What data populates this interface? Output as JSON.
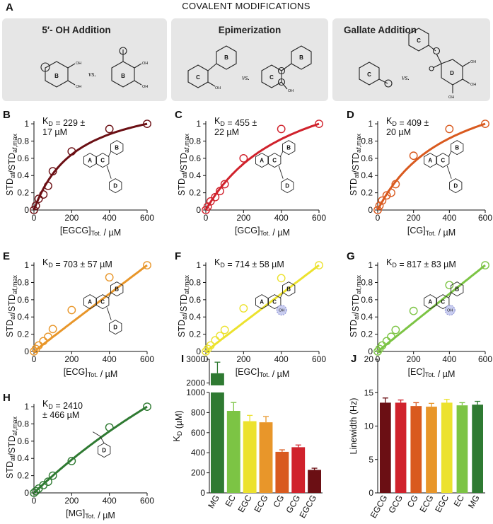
{
  "header": {
    "panel": "A",
    "title": "COVALENT MODIFICATIONS",
    "boxes": [
      {
        "title": "5′- OH Addition"
      },
      {
        "title": "Epimerization"
      },
      {
        "title": "Gallate Addition"
      }
    ],
    "vs": "vs.",
    "rings": {
      "b": "B",
      "c": "C",
      "d": "D",
      "a": "A"
    },
    "oh": "OH"
  },
  "chart_data": [
    {
      "panel": "B",
      "type": "scatter",
      "compound": "EGCG",
      "color": "#6b0f14",
      "kd_lines": [
        "K_D = 229 ±",
        "17 µM"
      ],
      "x": [
        0,
        10,
        25,
        50,
        75,
        100,
        200,
        400,
        600
      ],
      "y": [
        0.0,
        0.05,
        0.13,
        0.18,
        0.28,
        0.45,
        0.68,
        0.94,
        1.0
      ],
      "xlabel": "[EGCG]_Tot. / µM",
      "ylabel": "STD_af/STD_af,max",
      "xlim": [
        0,
        600
      ],
      "ylim": [
        0,
        1.05
      ],
      "xticks": [
        "0",
        "200",
        "400",
        "600"
      ],
      "yticks": [
        "0",
        "0.2",
        "0.4",
        "0.6",
        "0.8",
        "1"
      ]
    },
    {
      "panel": "C",
      "type": "scatter",
      "compound": "GCG",
      "color": "#d0222c",
      "kd_lines": [
        "K_D = 455 ±",
        "22 µM"
      ],
      "x": [
        0,
        10,
        25,
        50,
        75,
        100,
        200,
        400,
        600
      ],
      "y": [
        0.0,
        0.04,
        0.1,
        0.15,
        0.22,
        0.3,
        0.6,
        0.94,
        1.0
      ],
      "xlabel": "[GCG]_Tot. / µM",
      "ylabel": "STD_af/STD_af,max",
      "xlim": [
        0,
        600
      ],
      "ylim": [
        0,
        1.05
      ],
      "xticks": [
        "0",
        "200",
        "400",
        "600"
      ],
      "yticks": [
        "0",
        "0.2",
        "0.4",
        "0.6",
        "0.8",
        "1"
      ]
    },
    {
      "panel": "D",
      "type": "scatter",
      "compound": "CG",
      "color": "#d95a1f",
      "kd_lines": [
        "K_D = 409 ±",
        "20 µM"
      ],
      "x": [
        0,
        10,
        25,
        50,
        75,
        100,
        200,
        400,
        600
      ],
      "y": [
        0.0,
        0.05,
        0.11,
        0.17,
        0.2,
        0.3,
        0.63,
        0.94,
        1.0
      ],
      "xlabel": "[CG]_Tot. / µM",
      "ylabel": "STD_af/STD_af,max",
      "xlim": [
        0,
        600
      ],
      "ylim": [
        0,
        1.05
      ],
      "xticks": [
        "0",
        "200",
        "400",
        "600"
      ],
      "yticks": [
        "0",
        "0.2",
        "0.4",
        "0.6",
        "0.8",
        "1"
      ]
    },
    {
      "panel": "E",
      "type": "scatter",
      "compound": "ECG",
      "color": "#e8962a",
      "kd_lines": [
        "K_D = 703 ± 57 µM"
      ],
      "x": [
        0,
        10,
        25,
        50,
        75,
        100,
        200,
        400,
        600
      ],
      "y": [
        0.0,
        0.03,
        0.07,
        0.12,
        0.17,
        0.26,
        0.48,
        0.86,
        1.0
      ],
      "xlabel": "[ECG]_Tot. / µM",
      "ylabel": "STD_af/STD_af,max",
      "xlim": [
        0,
        600
      ],
      "ylim": [
        0,
        1.05
      ],
      "xticks": [
        "0",
        "200",
        "400",
        "600"
      ],
      "yticks": [
        "0",
        "0.2",
        "0.4",
        "0.6",
        "0.8",
        "1"
      ]
    },
    {
      "panel": "F",
      "type": "scatter",
      "compound": "EGC",
      "color": "#ece22e",
      "kd_lines": [
        "K_D = 714 ± 58 µM"
      ],
      "x": [
        0,
        10,
        25,
        50,
        75,
        100,
        200,
        400,
        600
      ],
      "y": [
        0.0,
        0.03,
        0.07,
        0.13,
        0.18,
        0.25,
        0.5,
        0.85,
        1.0
      ],
      "xlabel": "[EGC]_Tot. / µM",
      "ylabel": "STD_af/STD_af,max",
      "xlim": [
        0,
        600
      ],
      "ylim": [
        0,
        1.05
      ],
      "xticks": [
        "0",
        "200",
        "400",
        "600"
      ],
      "yticks": [
        "0",
        "0.2",
        "0.4",
        "0.6",
        "0.8",
        "1"
      ]
    },
    {
      "panel": "G",
      "type": "scatter",
      "compound": "EC",
      "color": "#7cc444",
      "kd_lines": [
        "K_D = 817 ± 83 µM"
      ],
      "x": [
        0,
        10,
        25,
        50,
        75,
        100,
        200,
        400,
        600
      ],
      "y": [
        0.0,
        0.03,
        0.07,
        0.12,
        0.17,
        0.25,
        0.47,
        0.77,
        1.0
      ],
      "xlabel": "[EC]_Tot. / µM",
      "ylabel": "STD_af/STD_af,max",
      "xlim": [
        0,
        600
      ],
      "ylim": [
        0,
        1.05
      ],
      "xticks": [
        "0",
        "200",
        "400",
        "600"
      ],
      "yticks": [
        "0",
        "0.2",
        "0.4",
        "0.6",
        "0.8",
        "1"
      ]
    },
    {
      "panel": "H",
      "type": "scatter",
      "compound": "MG",
      "color": "#2f7a32",
      "kd_lines": [
        "K_D = 2410",
        "± 466 µM"
      ],
      "x": [
        0,
        10,
        25,
        50,
        75,
        100,
        200,
        400,
        600
      ],
      "y": [
        0.0,
        0.02,
        0.05,
        0.09,
        0.13,
        0.2,
        0.37,
        0.76,
        1.0
      ],
      "xlabel": "[MG]_Tot. / µM",
      "ylabel": "STD_af/STD_af,max",
      "xlim": [
        0,
        600
      ],
      "ylim": [
        0,
        1.05
      ],
      "xticks": [
        "0",
        "200",
        "400",
        "600"
      ],
      "yticks": [
        "0",
        "0.2",
        "0.4",
        "0.6",
        "0.8",
        "1"
      ]
    },
    {
      "panel": "I",
      "type": "bar",
      "broken_axis": true,
      "categories": [
        "MG",
        "EC",
        "EGC",
        "ECG",
        "CG",
        "GCG",
        "EGCG"
      ],
      "values": [
        2410,
        817,
        714,
        703,
        409,
        455,
        229
      ],
      "errors": [
        466,
        83,
        58,
        57,
        20,
        22,
        17
      ],
      "colors": [
        "#2f7a32",
        "#7cc444",
        "#ece22e",
        "#e8962a",
        "#d95a1f",
        "#d0222c",
        "#6b0f14"
      ],
      "ylabel": "K_D (µM)",
      "yticks_lower": [
        "0",
        "200",
        "400",
        "600",
        "800",
        "1000"
      ],
      "yticks_upper": [
        "2000",
        "3000"
      ],
      "ylim_lower": [
        0,
        1000
      ],
      "ylim_upper": [
        1900,
        3000
      ]
    },
    {
      "panel": "J",
      "type": "bar",
      "categories": [
        "EGCG",
        "GCG",
        "CG",
        "ECG",
        "EGC",
        "EC",
        "MG"
      ],
      "values": [
        13.5,
        13.5,
        13.0,
        12.9,
        13.5,
        13.1,
        13.2
      ],
      "errors": [
        0.7,
        0.4,
        0.5,
        0.5,
        0.5,
        0.4,
        0.5
      ],
      "colors": [
        "#6b0f14",
        "#d0222c",
        "#d95a1f",
        "#e8962a",
        "#ece22e",
        "#7cc444",
        "#2f7a32"
      ],
      "ylabel": "Linewidth (Hz)",
      "yticks": [
        "0",
        "5",
        "10",
        "15",
        "20"
      ],
      "ylim": [
        0,
        20
      ]
    }
  ]
}
